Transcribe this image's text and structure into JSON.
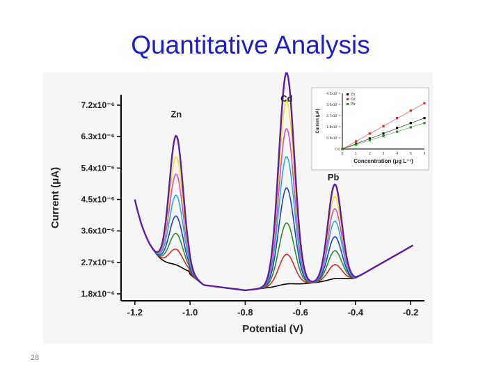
{
  "slide": {
    "title": "Quantitative Analysis",
    "page_number": "28"
  },
  "chart_data": [
    {
      "type": "line",
      "title": "",
      "xlabel": "Potential (V)",
      "ylabel": "Current (μA)",
      "xlim": [
        -1.25,
        -0.15
      ],
      "ylim": [
        1.6e-06,
        7.5e-06
      ],
      "x_ticks": [
        "-1.2",
        "-1.0",
        "-0.8",
        "-0.6",
        "-0.4",
        "-0.2"
      ],
      "y_ticks": [
        "1.8x10⁻⁶",
        "2.7x10⁻⁶",
        "3.6x10⁻⁶",
        "4.5x10⁻⁶",
        "5.4x10⁻⁶",
        "6.3x10⁻⁶",
        "7.2x10⁻⁶"
      ],
      "y_tick_values": [
        1.8e-06,
        2.7e-06,
        3.6e-06,
        4.5e-06,
        5.4e-06,
        6.3e-06,
        7.2e-06
      ],
      "peak_labels": [
        {
          "text": "Zn",
          "x": -1.05,
          "y": 6.85e-06
        },
        {
          "text": "Cd",
          "x": -0.65,
          "y": 7.3e-06
        },
        {
          "text": "Pb",
          "x": -0.48,
          "y": 5.05e-06
        }
      ],
      "peaks": [
        {
          "name": "Zn",
          "center": -1.05,
          "width": 0.025
        },
        {
          "name": "Cd",
          "center": -0.65,
          "width": 0.028
        },
        {
          "name": "Pb",
          "center": -0.475,
          "width": 0.025
        }
      ],
      "series": [
        {
          "color": "#000000",
          "peak_heights": [
            1e-07,
            5e-08,
            5e-08
          ]
        },
        {
          "color": "#d62728",
          "peak_heights": [
            5.5e-07,
            9e-07,
            4.5e-07
          ]
        },
        {
          "color": "#2a8a2a",
          "peak_heights": [
            1e-06,
            1.8e-06,
            8.5e-07
          ]
        },
        {
          "color": "#1f3fbf",
          "peak_heights": [
            1.5e-06,
            2.8e-06,
            1.25e-06
          ]
        },
        {
          "color": "#20b0e0",
          "peak_heights": [
            2.1e-06,
            3.7e-06,
            1.7e-06
          ]
        },
        {
          "color": "#e048c8",
          "peak_heights": [
            2.7e-06,
            4.5e-06,
            2.05e-06
          ]
        },
        {
          "color": "#f0e020",
          "peak_heights": [
            3.2e-06,
            5.3e-06,
            2.4e-06
          ]
        },
        {
          "color": "#5a1fa0",
          "peak_heights": [
            3.8e-06,
            6.1e-06,
            2.75e-06
          ]
        }
      ],
      "grid": false
    },
    {
      "type": "scatter",
      "xlabel": "Concentration (μg L⁻¹)",
      "ylabel": "Current (μA)",
      "xlim": [
        0,
        6
      ],
      "x_ticks": [
        "0",
        "1",
        "2",
        "3",
        "4",
        "5",
        "6"
      ],
      "y_ticks": [
        "0.0",
        "0.9x10⁻⁶",
        "1.8x10⁻⁶",
        "2.7x10⁻⁶",
        "3.6x10⁻⁶",
        "4.5x10⁻⁶"
      ],
      "legend": [
        "Zn",
        "Cd",
        "Pb"
      ],
      "legend_position": "top-left",
      "series": [
        {
          "name": "Zn",
          "color": "#000000",
          "x": [
            0,
            1,
            2,
            3,
            4,
            5,
            6
          ],
          "y": [
            0.0,
            0.42,
            0.85,
            1.25,
            1.7,
            2.1,
            2.5
          ]
        },
        {
          "name": "Cd",
          "color": "#d62728",
          "x": [
            0,
            1,
            2,
            3,
            4,
            5,
            6
          ],
          "y": [
            0.0,
            0.62,
            1.25,
            1.85,
            2.5,
            3.1,
            3.7
          ]
        },
        {
          "name": "Pb",
          "color": "#2a8a2a",
          "x": [
            0,
            1,
            2,
            3,
            4,
            5,
            6
          ],
          "y": [
            0.0,
            0.35,
            0.7,
            1.05,
            1.4,
            1.75,
            2.1
          ]
        }
      ]
    }
  ]
}
